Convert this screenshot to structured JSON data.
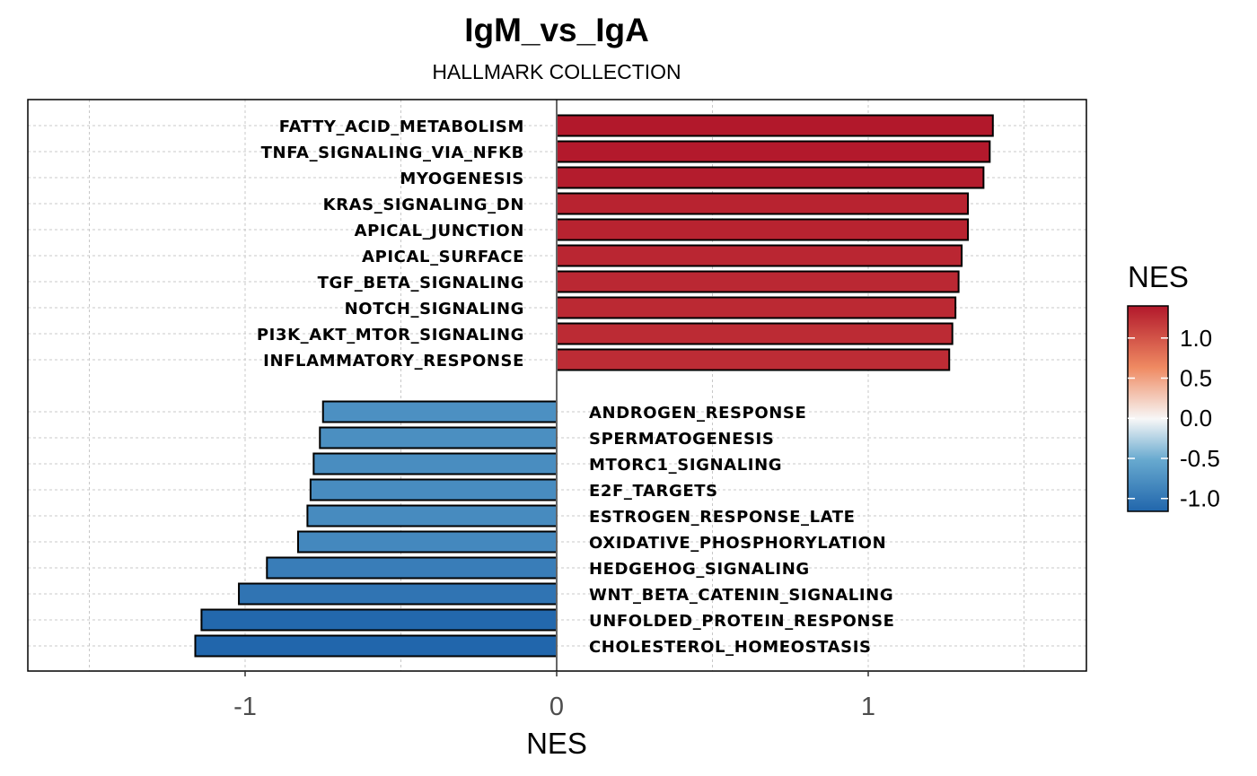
{
  "chart_data": {
    "type": "bar",
    "orientation": "horizontal",
    "title": "IgM_vs_IgA",
    "subtitle": "HALLMARK COLLECTION",
    "xlabel": "NES",
    "ylabel": "",
    "xlim": [
      -1.7,
      1.7
    ],
    "xticks": [
      -1,
      0,
      1
    ],
    "xtick_labels": [
      "-1",
      "0",
      "1"
    ],
    "grid": true,
    "categories": [
      "FATTY_ACID_METABOLISM",
      "TNFA_SIGNALING_VIA_NFKB",
      "MYOGENESIS",
      "KRAS_SIGNALING_DN",
      "APICAL_JUNCTION",
      "APICAL_SURFACE",
      "TGF_BETA_SIGNALING",
      "NOTCH_SIGNALING",
      "PI3K_AKT_MTOR_SIGNALING",
      "INFLAMMATORY_RESPONSE",
      "ANDROGEN_RESPONSE",
      "SPERMATOGENESIS",
      "MTORC1_SIGNALING",
      "E2F_TARGETS",
      "ESTROGEN_RESPONSE_LATE",
      "OXIDATIVE_PHOSPHORYLATION",
      "HEDGEHOG_SIGNALING",
      "WNT_BETA_CATENIN_SIGNALING",
      "UNFOLDED_PROTEIN_RESPONSE",
      "CHOLESTEROL_HOMEOSTASIS"
    ],
    "values": [
      1.4,
      1.39,
      1.37,
      1.32,
      1.32,
      1.3,
      1.29,
      1.28,
      1.27,
      1.26,
      -0.75,
      -0.76,
      -0.78,
      -0.79,
      -0.8,
      -0.83,
      -0.93,
      -1.02,
      -1.14,
      -1.16
    ],
    "legend": {
      "title": "NES",
      "position": "right",
      "type": "colorbar",
      "ticks": [
        1.0,
        0.5,
        0.0,
        -0.5,
        -1.0
      ],
      "tick_labels": [
        "1.0",
        "0.5",
        "0.0",
        "-0.5",
        "-1.0"
      ],
      "range": [
        -1.16,
        1.4
      ]
    },
    "colors": {
      "high": "#b2182b",
      "mid": "#f7f7f7",
      "low": "#2166ac"
    }
  }
}
